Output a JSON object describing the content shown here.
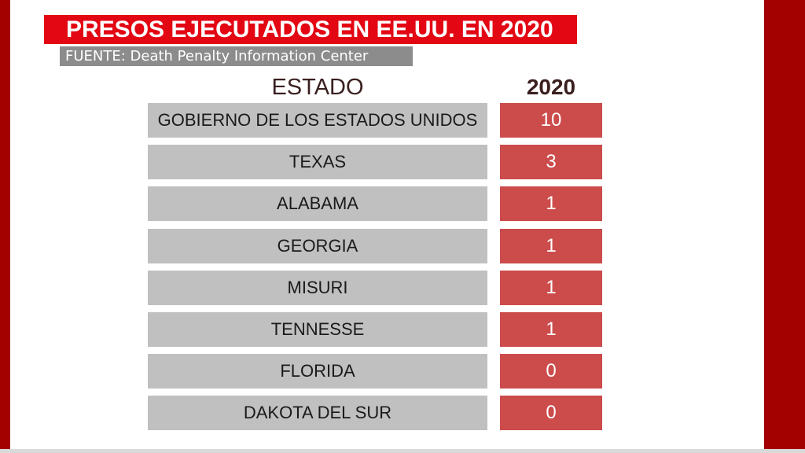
{
  "title": "PRESOS EJECUTADOS EN EE.UU. EN 2020",
  "source": "FUENTE: Death Penalty Information Center",
  "chart_data": {
    "type": "table",
    "title": "PRESOS EJECUTADOS EN EE.UU. EN 2020",
    "columns": [
      "ESTADO",
      "2020"
    ],
    "rows": [
      {
        "state": "GOBIERNO DE LOS ESTADOS UNIDOS",
        "value": 10
      },
      {
        "state": "TEXAS",
        "value": 3
      },
      {
        "state": "ALABAMA",
        "value": 1
      },
      {
        "state": "GEORGIA",
        "value": 1
      },
      {
        "state": "MISURI",
        "value": 1
      },
      {
        "state": "TENNESSE",
        "value": 1
      },
      {
        "state": "FLORIDA",
        "value": 0
      },
      {
        "state": "DAKOTA DEL SUR",
        "value": 0
      }
    ]
  },
  "colors": {
    "frame": "#a30000",
    "title_background": "#e30613",
    "source_background": "#8c8c8c",
    "state_cell": "#c0c0c0",
    "value_cell": "#cc4b4b"
  }
}
